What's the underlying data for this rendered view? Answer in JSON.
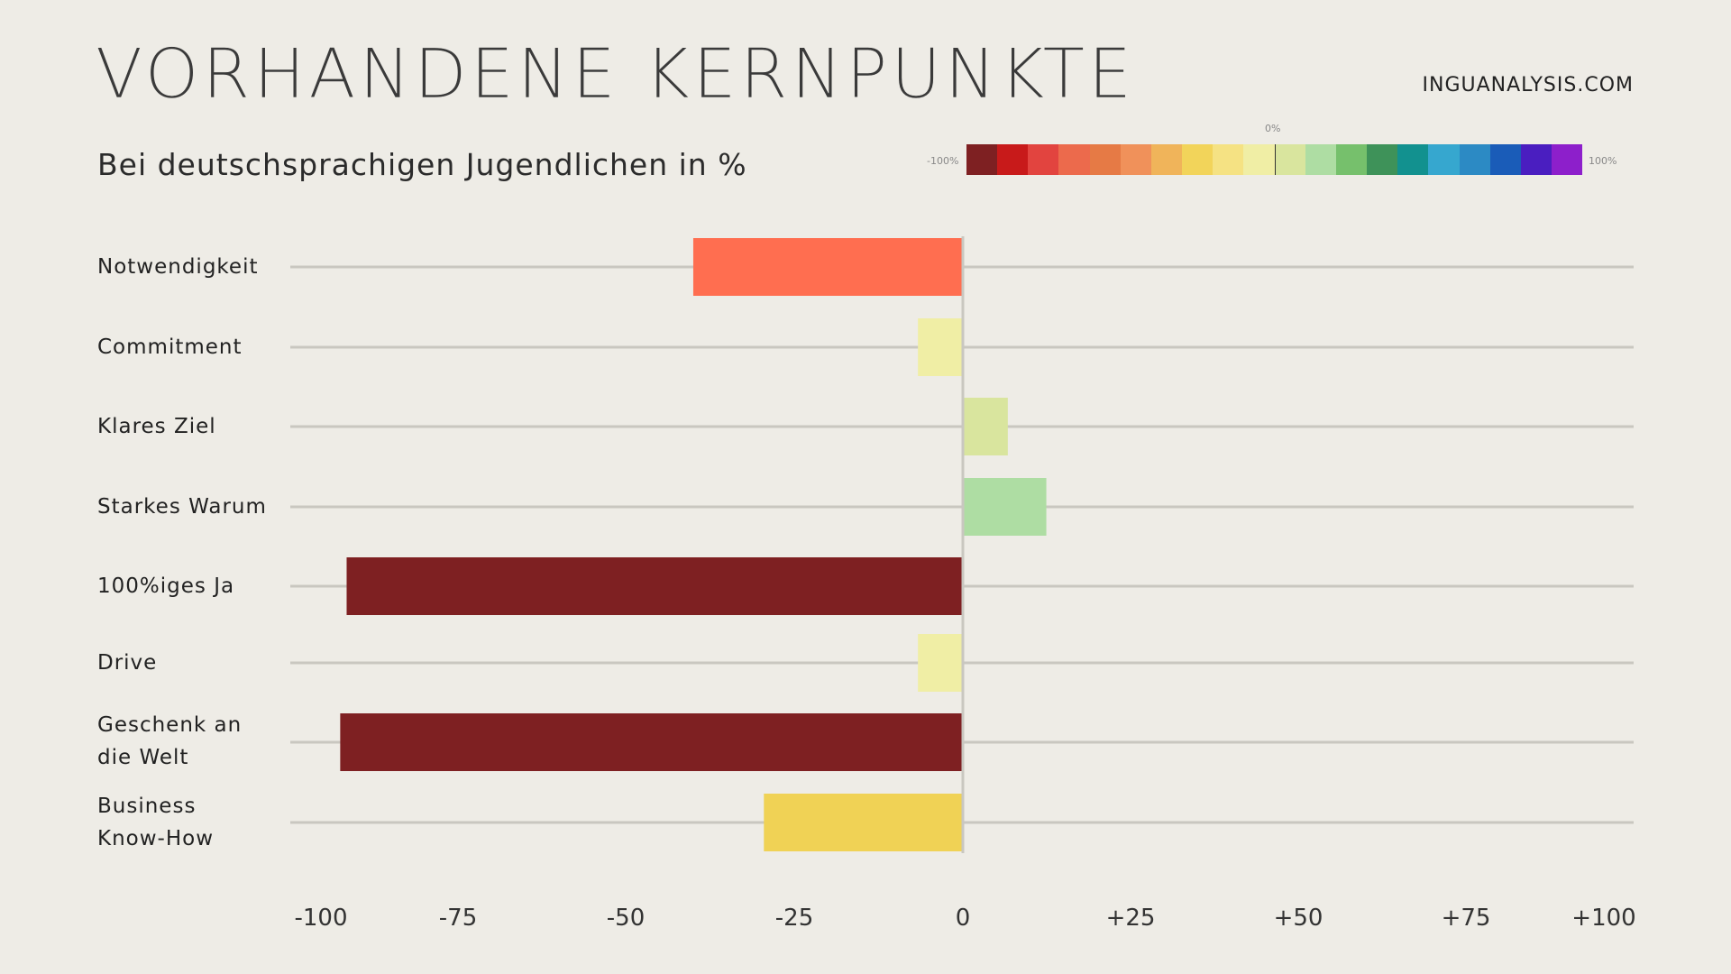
{
  "header": {
    "title": "VORHANDENE KERNPUNKTE",
    "subtitle": "Bei deutschsprachigen Jugendlichen in %",
    "brand": "INGUANALYSIS.COM"
  },
  "legend": {
    "min_label": "-100%",
    "mid_label": "0%",
    "max_label": "100%",
    "colors": [
      "#7e2022",
      "#c81a1a",
      "#e2443f",
      "#ec6a4c",
      "#e67a45",
      "#f0915a",
      "#f0b45a",
      "#f2d45a",
      "#f5e283",
      "#f0eea5",
      "#d9e59e",
      "#aedda3",
      "#76c06c",
      "#3e9259",
      "#12918f",
      "#36a7cf",
      "#2c8ac4",
      "#1a5cb8",
      "#4a1ec0",
      "#8d1fcb"
    ]
  },
  "chart_data": {
    "type": "bar",
    "orientation": "horizontal",
    "categories": [
      "Notwendigkeit",
      "Commitment",
      "Klares Ziel",
      "Starkes Warum",
      "100%iges Ja",
      "Drive",
      "Geschenk an die Welt",
      "Business Know-How"
    ],
    "values": [
      -42,
      -7,
      7,
      13,
      -96,
      -7,
      -97,
      -31
    ],
    "colors": [
      "#ff6e50",
      "#f0eea5",
      "#d9e59e",
      "#aedda3",
      "#7e2022",
      "#f0eea5",
      "#7e2022",
      "#f0d255"
    ],
    "xlim": [
      -100,
      100
    ],
    "tick_labels": [
      "-100",
      "-75",
      "-50",
      "-25",
      "0",
      "+25",
      "+50",
      "+75",
      "+100"
    ],
    "tick_values": [
      -100,
      -75,
      -50,
      -25,
      0,
      25,
      50,
      75,
      100
    ],
    "grid": true
  }
}
